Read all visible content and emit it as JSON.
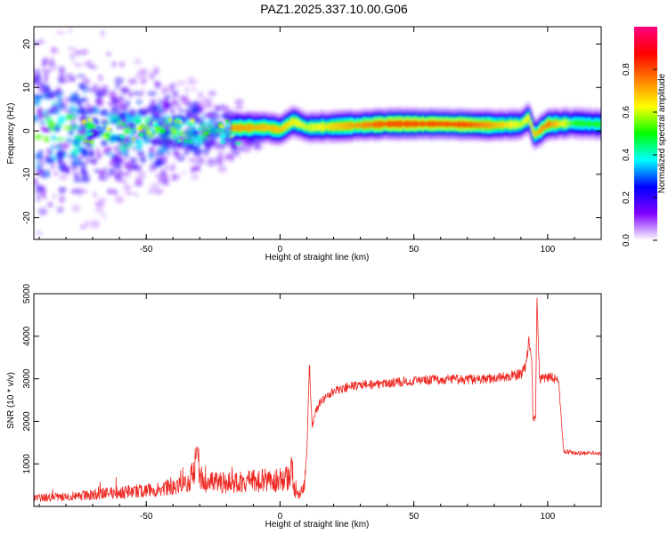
{
  "title": "PAZ1.2025.337.10.00.G06",
  "colors": {
    "snr_line": "#ee2a24",
    "frame": "#000000"
  },
  "chart_data": [
    {
      "type": "heatmap",
      "xlabel": "Height of straight line (km)",
      "ylabel": "Frequency (Hz)",
      "xlim": [
        -92,
        120
      ],
      "ylim": [
        -25,
        24
      ],
      "x_ticks": [
        -50,
        0,
        50,
        100
      ],
      "x_tick_labels": [
        "-50",
        "0",
        "50",
        "100"
      ],
      "y_ticks": [
        -20,
        -10,
        0,
        10,
        20
      ],
      "y_tick_labels": [
        "-20",
        "-10",
        "0",
        "10",
        "20"
      ],
      "colorbar": {
        "label": "Normalized spectral amplitude",
        "range": [
          0,
          1
        ],
        "ticks": [
          0.0,
          0.2,
          0.4,
          0.6,
          0.8
        ],
        "tick_labels": [
          "0.0",
          "0.2",
          "0.4",
          "0.6",
          "0.8"
        ],
        "colormap": [
          "#ffffff",
          "#8000ff",
          "#0000ff",
          "#00ffff",
          "#00ff00",
          "#ffff00",
          "#ff8000",
          "#ff0000",
          "#ff0080"
        ]
      },
      "ridge_frequency": [
        {
          "x": -15,
          "y": 0.7
        },
        {
          "x": -5,
          "y": 0.8
        },
        {
          "x": 0,
          "y": 0.2
        },
        {
          "x": 5,
          "y": 2.2
        },
        {
          "x": 10,
          "y": 0.8
        },
        {
          "x": 20,
          "y": 1.0
        },
        {
          "x": 40,
          "y": 1.6
        },
        {
          "x": 60,
          "y": 1.6
        },
        {
          "x": 80,
          "y": 1.3
        },
        {
          "x": 90,
          "y": 1.5
        },
        {
          "x": 93,
          "y": 3.0
        },
        {
          "x": 95,
          "y": -1.0
        },
        {
          "x": 100,
          "y": 1.5
        },
        {
          "x": 110,
          "y": 1.8
        },
        {
          "x": 120,
          "y": 1.5
        }
      ],
      "ridge_amplitude": [
        {
          "x": -15,
          "y": 0.85
        },
        {
          "x": 0,
          "y": 0.8
        },
        {
          "x": 10,
          "y": 0.7
        },
        {
          "x": 40,
          "y": 0.95
        },
        {
          "x": 70,
          "y": 0.95
        },
        {
          "x": 90,
          "y": 0.7
        },
        {
          "x": 100,
          "y": 0.9
        },
        {
          "x": 110,
          "y": 0.6
        },
        {
          "x": 120,
          "y": 0.6
        }
      ]
    },
    {
      "type": "line",
      "xlabel": "Height of straight line (km)",
      "ylabel": "SNR (10 * v/v)",
      "xlim": [
        -92,
        120
      ],
      "ylim": [
        0,
        5000
      ],
      "x_ticks": [
        -50,
        0,
        50,
        100
      ],
      "x_tick_labels": [
        "-50",
        "0",
        "50",
        "100"
      ],
      "y_ticks": [
        1000,
        2000,
        3000,
        4000,
        5000
      ],
      "y_tick_labels": [
        "1000",
        "2000",
        "3000",
        "4000",
        "5000"
      ],
      "series": [
        {
          "x": [
            -92,
            -80,
            -70,
            -60,
            -50,
            -40,
            -35,
            -32,
            -31,
            -30,
            -28,
            -20,
            -10,
            0,
            4,
            4.5,
            5,
            7,
            9,
            10,
            11,
            12,
            13,
            15,
            20,
            25,
            30,
            40,
            50,
            60,
            70,
            80,
            85,
            90,
            92,
            93,
            94,
            94.5,
            95.5,
            96,
            97,
            100,
            104,
            105,
            106,
            110,
            120
          ],
          "y": [
            200,
            230,
            280,
            330,
            370,
            450,
            500,
            800,
            1450,
            700,
            550,
            560,
            600,
            620,
            680,
            1050,
            400,
            280,
            450,
            1300,
            3300,
            1850,
            2200,
            2450,
            2700,
            2800,
            2850,
            2900,
            2950,
            2980,
            2980,
            3000,
            3050,
            3100,
            3350,
            3900,
            3600,
            2050,
            2100,
            4950,
            3000,
            3050,
            3000,
            2150,
            1300,
            1250,
            1250
          ]
        }
      ]
    }
  ]
}
